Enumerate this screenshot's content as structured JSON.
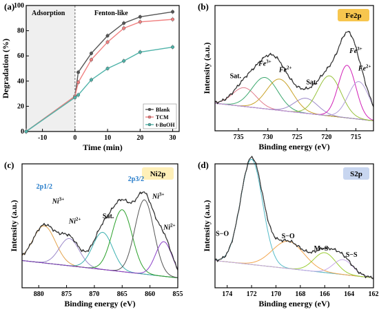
{
  "chart_data": [
    {
      "panel": "(a)",
      "type": "line",
      "xlabel": "Time (min)",
      "ylabel": "Degradation (%)",
      "xlim": [
        -15,
        32
      ],
      "ylim": [
        0,
        100
      ],
      "xticks": [
        -10,
        0,
        10,
        20,
        30
      ],
      "yticks": [
        0,
        20,
        40,
        60,
        80,
        100
      ],
      "region_labels": [
        "Adsorption",
        "Fenton-like"
      ],
      "legend_position": "bottom-right",
      "series": [
        {
          "name": "Blank",
          "color": "#555555",
          "marker": "circle",
          "x": [
            -15,
            0,
            1,
            5,
            10,
            15,
            20,
            30
          ],
          "y": [
            0,
            28,
            47,
            62,
            76,
            86,
            91,
            95
          ]
        },
        {
          "name": "TCM",
          "color": "#f08080",
          "marker": "circle",
          "x": [
            -15,
            0,
            1,
            5,
            10,
            15,
            20,
            30
          ],
          "y": [
            0,
            28,
            39,
            57,
            71,
            82,
            87,
            89
          ]
        },
        {
          "name": "t-BuOH",
          "color": "#4fb3a9",
          "marker": "circle",
          "x": [
            -15,
            0,
            1,
            5,
            10,
            15,
            20,
            30
          ],
          "y": [
            0,
            27,
            29,
            41,
            50,
            56,
            63,
            67
          ]
        }
      ]
    },
    {
      "panel": "(b)",
      "type": "line",
      "badge": "Fe2p",
      "badge_color": "#f7c64e",
      "xlabel": "Binding energy (eV)",
      "ylabel": "Intensity (a.u.)",
      "xlim": [
        739,
        712
      ],
      "xticks": [
        735,
        730,
        725,
        720,
        715
      ],
      "peaks": [
        {
          "center": 734,
          "height": 0.15,
          "width": 2.0,
          "color": "#e07a8a"
        },
        {
          "center": 730.5,
          "height": 0.25,
          "width": 2.2,
          "color": "#3aa76d"
        },
        {
          "center": 728,
          "height": 0.25,
          "width": 2.2,
          "color": "#c9a227"
        },
        {
          "center": 723.5,
          "height": 0.12,
          "width": 2.0,
          "color": "#9b88c9"
        },
        {
          "center": 719.5,
          "height": 0.32,
          "width": 2.0,
          "color": "#97c13b"
        },
        {
          "center": 716.5,
          "height": 0.42,
          "width": 1.5,
          "color": "#d11fb7"
        },
        {
          "center": 714.5,
          "height": 0.3,
          "width": 1.8,
          "color": "#b19cd9"
        }
      ],
      "annotations": [
        {
          "text": "Sat.",
          "x": 735.5,
          "y": 0.42
        },
        {
          "text": "Fe3+",
          "x": 730.5,
          "y": 0.52
        },
        {
          "text": "Fe2+",
          "x": 727.0,
          "y": 0.47
        },
        {
          "text": "Sat.",
          "x": 722.5,
          "y": 0.37
        },
        {
          "text": "Fe3+",
          "x": 715.0,
          "y": 0.62
        },
        {
          "text": "Fe2+",
          "x": 713.5,
          "y": 0.48
        }
      ]
    },
    {
      "panel": "(c)",
      "type": "line",
      "badge": "Ni2p",
      "badge_color": "#fff0b8",
      "xlabel": "Binding energy (eV)",
      "ylabel": "Intensity (a.u.)",
      "xlim": [
        883,
        855
      ],
      "xticks": [
        880,
        875,
        870,
        865,
        860,
        855
      ],
      "peaks": [
        {
          "center": 879,
          "height": 0.3,
          "width": 2.0,
          "color": "#e3a24a"
        },
        {
          "center": 874.5,
          "height": 0.22,
          "width": 1.8,
          "color": "#9b88c9"
        },
        {
          "center": 868.5,
          "height": 0.3,
          "width": 1.8,
          "color": "#3ab0b0"
        },
        {
          "center": 865,
          "height": 0.5,
          "width": 1.8,
          "color": "#2aa02a"
        },
        {
          "center": 861,
          "height": 0.6,
          "width": 1.7,
          "color": "#555555"
        },
        {
          "center": 857.5,
          "height": 0.28,
          "width": 1.5,
          "color": "#8a3fc8"
        }
      ],
      "annotations": [
        {
          "text": "2p1/2",
          "x": 879,
          "y": 0.8,
          "blue": true
        },
        {
          "text": "Ni3+",
          "x": 876.5,
          "y": 0.68
        },
        {
          "text": "Ni2+",
          "x": 873.5,
          "y": 0.52
        },
        {
          "text": "Sat.",
          "x": 867.5,
          "y": 0.56
        },
        {
          "text": "2p3/2",
          "x": 862.5,
          "y": 0.86,
          "blue": true
        },
        {
          "text": "Ni3+",
          "x": 858.5,
          "y": 0.72
        },
        {
          "text": "Ni2+",
          "x": 856.5,
          "y": 0.47
        }
      ]
    },
    {
      "panel": "(d)",
      "type": "line",
      "badge": "S2p",
      "badge_color": "#c8d6f0",
      "xlabel": "Binding energy (eV)",
      "ylabel": "Intensity (a.u.)",
      "xlim": [
        175,
        162
      ],
      "xticks": [
        174,
        172,
        170,
        168,
        166,
        164,
        162
      ],
      "peaks": [
        {
          "center": 172,
          "height": 0.85,
          "width": 0.9,
          "color": "#55bcc9"
        },
        {
          "center": 169,
          "height": 0.22,
          "width": 1.3,
          "color": "#f3a64e"
        },
        {
          "center": 166,
          "height": 0.16,
          "width": 0.9,
          "color": "#9acd32"
        },
        {
          "center": 164.5,
          "height": 0.12,
          "width": 0.8,
          "color": "#c8a9e8"
        }
      ],
      "annotations": [
        {
          "text": "S−O",
          "x": 174.4,
          "y": 0.42
        },
        {
          "text": "S−O",
          "x": 169.0,
          "y": 0.4
        },
        {
          "text": "M−S",
          "x": 166.3,
          "y": 0.3
        },
        {
          "text": "S−S",
          "x": 163.8,
          "y": 0.25
        }
      ]
    }
  ]
}
